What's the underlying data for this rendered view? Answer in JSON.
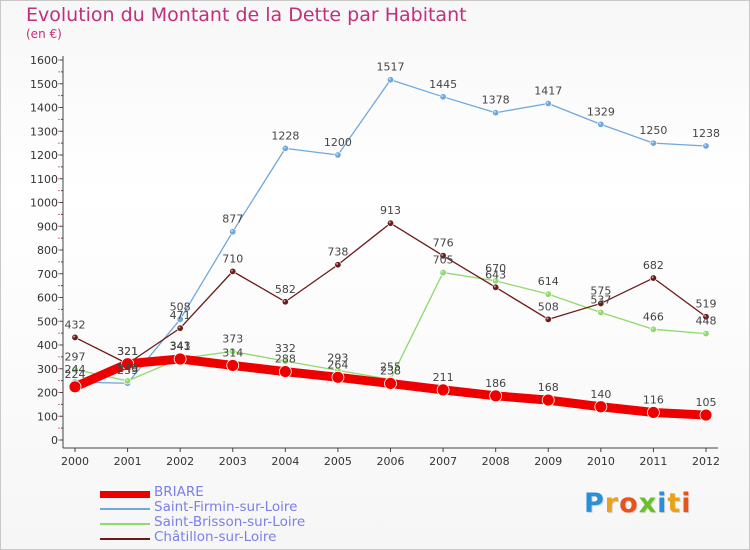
{
  "title": "Evolution du Montant de la Dette par Habitant",
  "subtitle": "(en €)",
  "logo": {
    "letters": [
      "P",
      "r",
      "o",
      "x",
      "i",
      "t",
      "i"
    ],
    "colors": [
      "#2b8fd6",
      "#e8a21c",
      "#e8531c",
      "#6bbf2a",
      "#2b8fd6",
      "#e8a21c",
      "#e8531c"
    ]
  },
  "chart_data": {
    "type": "line",
    "x": [
      "2000",
      "2001",
      "2002",
      "2003",
      "2004",
      "2005",
      "2006",
      "2007",
      "2008",
      "2009",
      "2010",
      "2011",
      "2012"
    ],
    "ylim": [
      0,
      1600
    ],
    "yticks": [
      "0",
      "100",
      "200",
      "300",
      "400",
      "500",
      "600",
      "700",
      "800",
      "900",
      "1000",
      "1100",
      "1200",
      "1300",
      "1400",
      "1500",
      "1600"
    ],
    "grid": false,
    "legend_position": "bottom",
    "series": [
      {
        "name": "BRIARE",
        "color": "#ee0000",
        "values": [
          224,
          321,
          341,
          314,
          288,
          264,
          238,
          211,
          186,
          168,
          140,
          116,
          105
        ],
        "labels": [
          "224",
          "321",
          "341",
          "314",
          "288",
          "264",
          "238",
          "211",
          "186",
          "168",
          "140",
          "116",
          "105"
        ]
      },
      {
        "name": "Saint-Firmin-sur-Loire",
        "color": "#6fa8dc",
        "values": [
          244,
          239,
          508,
          877,
          1228,
          1200,
          1517,
          1445,
          1378,
          1417,
          1329,
          1250,
          1238
        ],
        "labels": [
          "244",
          "239",
          "508",
          "877",
          "1228",
          "1200",
          "1517",
          "1445",
          "1378",
          "1417",
          "1329",
          "1250",
          "1238"
        ]
      },
      {
        "name": "Saint-Brisson-sur-Loire",
        "color": "#90d96b",
        "values": [
          297,
          249,
          343,
          373,
          332,
          293,
          255,
          705,
          670,
          614,
          537,
          466,
          448
        ],
        "labels": [
          "297",
          "249",
          "343",
          "373",
          "332",
          "293",
          "255",
          "705",
          "670",
          "614",
          "537",
          "466",
          "448"
        ]
      },
      {
        "name": "Châtillon-sur-Loire",
        "color": "#6b1a1a",
        "values": [
          432,
          321,
          471,
          710,
          582,
          738,
          913,
          776,
          643,
          508,
          575,
          682,
          519
        ],
        "labels": [
          "432",
          "321",
          "471",
          "710",
          "582",
          "738",
          "913",
          "776",
          "643",
          "508",
          "575",
          "682",
          "519"
        ]
      }
    ]
  }
}
